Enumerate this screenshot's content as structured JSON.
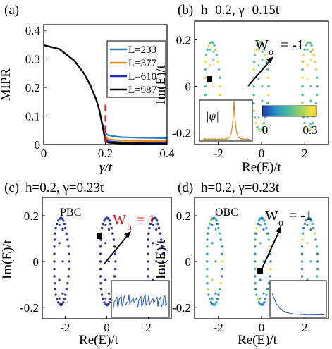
{
  "chart_data": [
    {
      "panel": "(a)",
      "type": "line",
      "xlabel": "γ/t",
      "ylabel": "MIPR",
      "xlim": [
        0,
        0.4
      ],
      "ylim": [
        0,
        0.42
      ],
      "xticks": [
        "0",
        "0.2",
        "0.4"
      ],
      "yticks": [
        "0",
        "0.1",
        "0.2",
        "0.3",
        "0.4"
      ],
      "legend": "top-right",
      "critical_line_x": 0.2,
      "series": [
        {
          "name": "L=233",
          "color": "#2f7fc1",
          "x": [
            0,
            0.05,
            0.1,
            0.13,
            0.15,
            0.17,
            0.18,
            0.19,
            0.2,
            0.21,
            0.25,
            0.3,
            0.35,
            0.4
          ],
          "y": [
            0.348,
            0.335,
            0.293,
            0.25,
            0.21,
            0.158,
            0.122,
            0.075,
            0.04,
            0.032,
            0.026,
            0.024,
            0.023,
            0.022
          ]
        },
        {
          "name": "L=377",
          "color": "#e08a1e",
          "x": [
            0,
            0.05,
            0.1,
            0.13,
            0.15,
            0.17,
            0.18,
            0.19,
            0.2,
            0.21,
            0.25,
            0.3,
            0.35,
            0.4
          ],
          "y": [
            0.348,
            0.335,
            0.293,
            0.25,
            0.21,
            0.158,
            0.122,
            0.072,
            0.028,
            0.018,
            0.014,
            0.013,
            0.012,
            0.012
          ]
        },
        {
          "name": "L=610",
          "color": "#1f2bc9",
          "x": [
            0,
            0.05,
            0.1,
            0.13,
            0.15,
            0.17,
            0.18,
            0.19,
            0.2,
            0.21,
            0.25,
            0.3,
            0.35,
            0.4
          ],
          "y": [
            0.348,
            0.335,
            0.293,
            0.25,
            0.21,
            0.158,
            0.122,
            0.07,
            0.02,
            0.011,
            0.008,
            0.007,
            0.007,
            0.007
          ]
        },
        {
          "name": "L=987",
          "color": "#000000",
          "x": [
            0,
            0.05,
            0.1,
            0.13,
            0.15,
            0.17,
            0.18,
            0.19,
            0.2,
            0.21,
            0.25,
            0.3,
            0.35,
            0.4
          ],
          "y": [
            0.348,
            0.335,
            0.293,
            0.25,
            0.21,
            0.158,
            0.122,
            0.068,
            0.012,
            0.006,
            0.004,
            0.004,
            0.003,
            0.003
          ]
        }
      ]
    },
    {
      "panel": "(b)",
      "type": "scatter",
      "title": "h=0.2, γ=0.15t",
      "xlabel": "Re(E)/t",
      "ylabel": "Im(E)/t",
      "xlim": [
        -3.1,
        3.1
      ],
      "ylim": [
        -0.25,
        0.28
      ],
      "xticks": [
        "-2",
        "0",
        "2"
      ],
      "yticks": [
        "-0.2",
        "0",
        "0.2"
      ],
      "annotation": {
        "label": "W",
        "sub": "o",
        "value": "= -1"
      },
      "colorbar": {
        "min_label": "0",
        "max_label": "0.3",
        "colors": [
          "#1f35a8",
          "#2a8fc8",
          "#4fbf9a",
          "#a9d35a",
          "#f2e13a",
          "#f6c63a"
        ]
      },
      "inset_label": "|ψ|",
      "loops": [
        {
          "cx": -2.3,
          "pts": 32,
          "rx": 0.38,
          "ry": 0.19,
          "color": "#5fbb92"
        },
        {
          "cx": -0.05,
          "pts": 32,
          "rx": 0.38,
          "ry": 0.19,
          "color": "#5fbb92"
        },
        {
          "cx": 2.2,
          "pts": 32,
          "rx": 0.38,
          "ry": 0.19,
          "color": "#6ec48a"
        }
      ]
    },
    {
      "panel": "(c)",
      "type": "scatter",
      "title": "h=0.2, γ=0.23t",
      "label": "PBC",
      "xlabel": "Re(E)/t",
      "ylabel": "Im(E)/t",
      "xlim": [
        -3.1,
        3.1
      ],
      "ylim": [
        -0.25,
        0.28
      ],
      "xticks": [
        "-2",
        "0",
        "2"
      ],
      "yticks": [
        "-0.2",
        "0",
        "0.2"
      ],
      "annotation": {
        "label": "W",
        "sub": "h",
        "value": "= 1",
        "color": "#e0201c"
      },
      "loops": [
        {
          "cx": -2.2,
          "pts": 36,
          "rx": 0.4,
          "ry": 0.19,
          "color": "#2a2f95"
        },
        {
          "cx": 0.02,
          "pts": 36,
          "rx": 0.4,
          "ry": 0.19,
          "color": "#2a2f95"
        },
        {
          "cx": 2.3,
          "pts": 36,
          "rx": 0.4,
          "ry": 0.19,
          "color": "#2a2f95"
        }
      ]
    },
    {
      "panel": "(d)",
      "type": "scatter",
      "title": "h=0.2, γ=0.23t",
      "label": "OBC",
      "xlabel": "Re(E)/t",
      "ylabel": "Im(E)/t",
      "xlim": [
        -3.1,
        3.1
      ],
      "ylim": [
        -0.25,
        0.28
      ],
      "xticks": [
        "-2",
        "0",
        "2"
      ],
      "yticks": [
        "-0.2",
        "0",
        "0.2"
      ],
      "annotation": {
        "label": "W",
        "sub": "o",
        "value": "= -1"
      },
      "loops": [
        {
          "cx": -2.2,
          "pts": 36,
          "rx": 0.4,
          "ry": 0.19,
          "color": "#2f86c6"
        },
        {
          "cx": 0.02,
          "pts": 36,
          "rx": 0.4,
          "ry": 0.19,
          "color": "#2f86c6"
        },
        {
          "cx": 2.2,
          "pts": 36,
          "rx": 0.4,
          "ry": 0.19,
          "color": "#2f86c6"
        }
      ]
    }
  ],
  "panel_labels": [
    "(a)",
    "(b)",
    "(c)",
    "(d)"
  ]
}
